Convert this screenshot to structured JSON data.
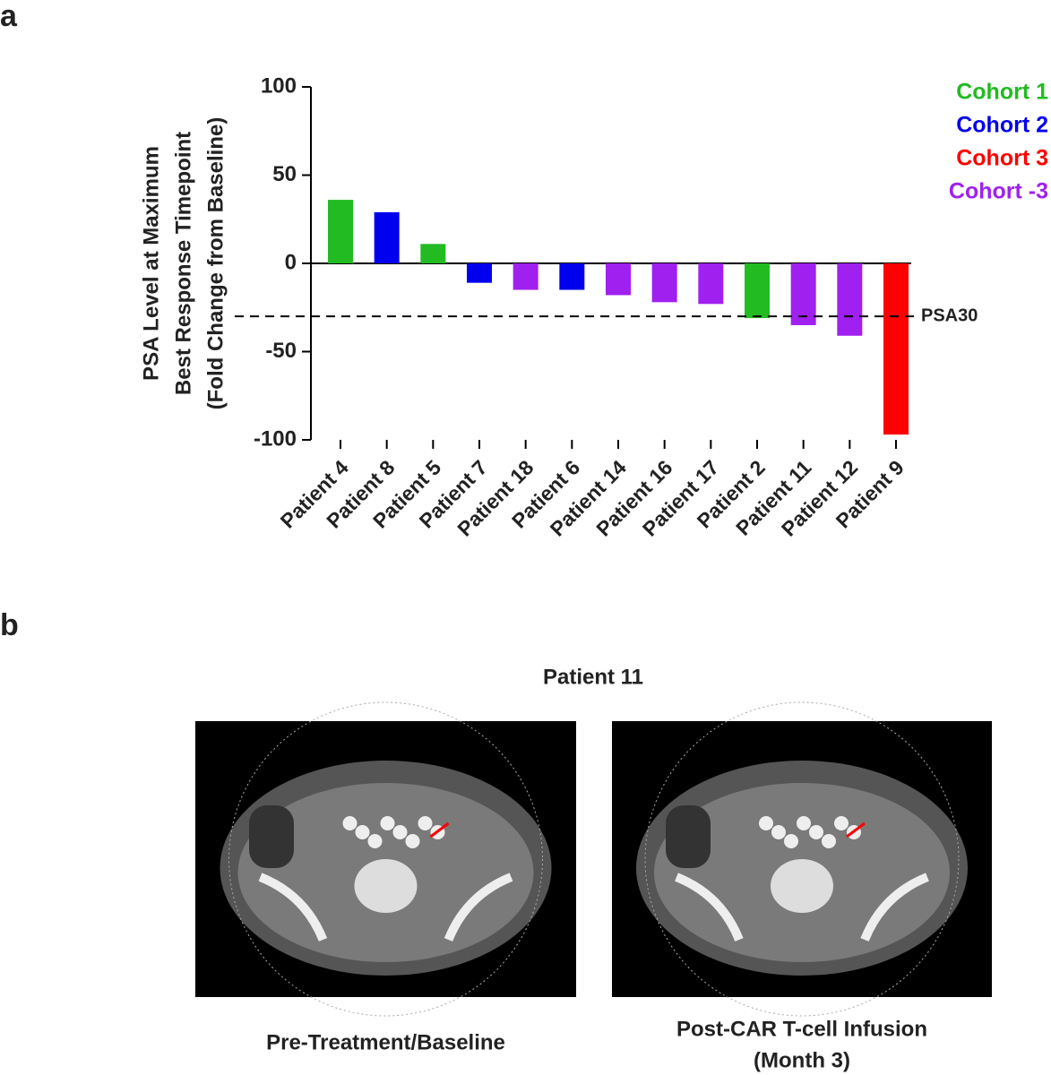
{
  "chart_data": {
    "type": "bar",
    "panel_label": "a",
    "y_label": [
      "PSA Level at Maximum",
      "Best Response Timepoint",
      "(Fold Change from Baseline)"
    ],
    "categories": [
      "Patient 4",
      "Patient 8",
      "Patient 5",
      "Patient 7",
      "Patient 18",
      "Patient 6",
      "Patient 14",
      "Patient 16",
      "Patient 17",
      "Patient 2",
      "Patient 11",
      "Patient 12",
      "Patient 9"
    ],
    "values": [
      36,
      29,
      11,
      -11,
      -15,
      -15,
      -18,
      -22,
      -23,
      -31,
      -35,
      -41,
      -97
    ],
    "colors": [
      "#22bb22",
      "#0000ee",
      "#22bb22",
      "#0000ee",
      "#a020f0",
      "#0000ee",
      "#a020f0",
      "#a020f0",
      "#a020f0",
      "#22bb22",
      "#a020f0",
      "#a020f0",
      "#ff0000"
    ],
    "legend": [
      {
        "label": "Cohort 1",
        "color": "#22bb22"
      },
      {
        "label": "Cohort 2",
        "color": "#0000ee"
      },
      {
        "label": "Cohort 3",
        "color": "#ff0000"
      },
      {
        "label": "Cohort -3",
        "color": "#a020f0"
      }
    ],
    "legend_position": "top-right",
    "reference_line": {
      "value": -30,
      "label": "PSA30"
    },
    "ylim": [
      -100,
      100
    ],
    "yticks": [
      -100,
      -50,
      0,
      50,
      100
    ]
  },
  "panel_b": {
    "label": "b",
    "title": "Patient 11",
    "images": [
      {
        "caption": [
          "Pre-Treatment/Baseline"
        ]
      },
      {
        "caption": [
          "Post-CAR T-cell Infusion",
          "(Month 3)"
        ]
      }
    ]
  }
}
